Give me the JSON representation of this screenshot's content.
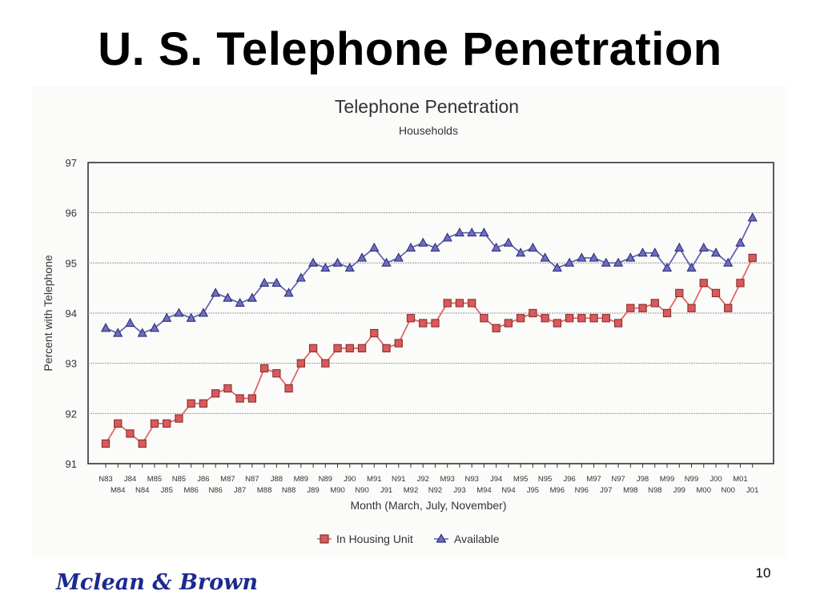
{
  "slide": {
    "title": "U. S. Telephone Penetration",
    "page_number": "10",
    "logo_text": "Mclean & Brown"
  },
  "colors": {
    "housing_line": "#e05f5f",
    "housing_marker_fill": "#d85a5a",
    "housing_marker_edge": "#8a2f2f",
    "available_line": "#5d5eb0",
    "available_marker_fill": "#6d6ec0",
    "available_marker_edge": "#2e2f78"
  },
  "chart_data": {
    "type": "line",
    "title": "Telephone Penetration",
    "subtitle": "Households",
    "xlabel": "Month (March, July, November)",
    "ylabel": "Percent with Telephone",
    "ylim": [
      91,
      97
    ],
    "yticks": [
      91,
      92,
      93,
      94,
      95,
      96,
      97
    ],
    "grid": true,
    "legend_position": "bottom-center",
    "x": [
      "N83",
      "M84",
      "J84",
      "N84",
      "M85",
      "J85",
      "N85",
      "M86",
      "J86",
      "N86",
      "M87",
      "J87",
      "N87",
      "M88",
      "J88",
      "N88",
      "M89",
      "J89",
      "N89",
      "M90",
      "J90",
      "N90",
      "M91",
      "J91",
      "N91",
      "M92",
      "J92",
      "N92",
      "M93",
      "J93",
      "N93",
      "M94",
      "J94",
      "N94",
      "M95",
      "J95",
      "N95",
      "M96",
      "J96",
      "N96",
      "M97",
      "J97",
      "N97",
      "M98",
      "J98",
      "N98",
      "M99",
      "J99",
      "N99",
      "M00",
      "J00",
      "N00",
      "M01",
      "J01"
    ],
    "series": [
      {
        "name": "In Housing Unit",
        "marker": "square",
        "values": [
          91.4,
          91.8,
          91.6,
          91.4,
          91.8,
          91.8,
          91.9,
          92.2,
          92.2,
          92.4,
          92.5,
          92.3,
          92.3,
          92.9,
          92.8,
          92.5,
          93.0,
          93.3,
          93.0,
          93.3,
          93.3,
          93.3,
          93.6,
          93.3,
          93.4,
          93.9,
          93.8,
          93.8,
          94.2,
          94.2,
          94.2,
          93.9,
          93.7,
          93.8,
          93.9,
          94.0,
          93.9,
          93.8,
          93.9,
          93.9,
          93.9,
          93.9,
          93.8,
          94.1,
          94.1,
          94.2,
          94.0,
          94.4,
          94.1,
          94.6,
          94.4,
          94.1,
          94.6,
          95.1
        ]
      },
      {
        "name": "Available",
        "marker": "triangle",
        "values": [
          93.7,
          93.6,
          93.8,
          93.6,
          93.7,
          93.9,
          94.0,
          93.9,
          94.0,
          94.4,
          94.3,
          94.2,
          94.3,
          94.6,
          94.6,
          94.4,
          94.7,
          95.0,
          94.9,
          95.0,
          94.9,
          95.1,
          95.3,
          95.0,
          95.1,
          95.3,
          95.4,
          95.3,
          95.5,
          95.6,
          95.6,
          95.6,
          95.3,
          95.4,
          95.2,
          95.3,
          95.1,
          94.9,
          95.0,
          95.1,
          95.1,
          95.0,
          95.0,
          95.1,
          95.2,
          95.2,
          94.9,
          95.3,
          94.9,
          95.3,
          95.2,
          95.0,
          95.4,
          95.9
        ]
      }
    ]
  }
}
